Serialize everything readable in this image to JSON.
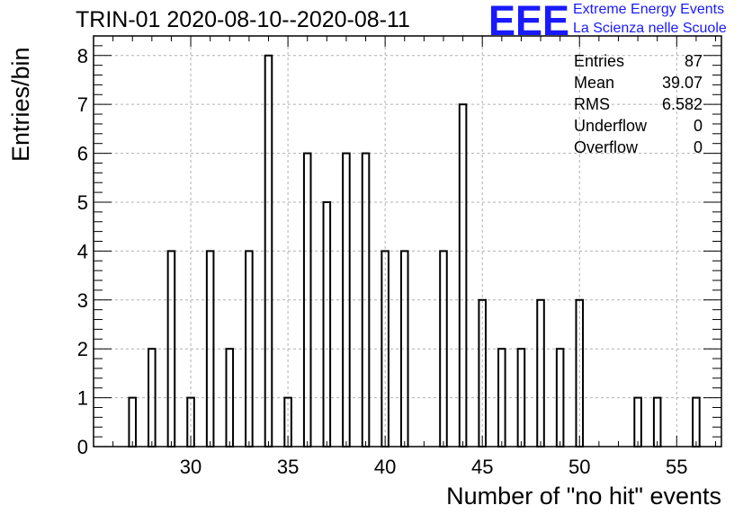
{
  "title": "TRIN-01 2020-08-10--2020-08-11",
  "logo": {
    "letters": "EEE",
    "line1": "Extreme Energy Events",
    "line2": "La Scienza nelle Scuole",
    "color": "#1a1aff"
  },
  "stats": [
    {
      "label": "Entries",
      "value": "87"
    },
    {
      "label": "Mean",
      "value": "39.07"
    },
    {
      "label": "RMS",
      "value": "6.582"
    },
    {
      "label": "Underflow",
      "value": "0"
    },
    {
      "label": "Overflow",
      "value": "0"
    }
  ],
  "chart_data": {
    "type": "bar",
    "xlabel": "Number of \"no hit\" events",
    "ylabel": "Entries/bin",
    "xlim": [
      25,
      57.3
    ],
    "ylim": [
      0,
      8.4
    ],
    "xticks": [
      30,
      35,
      40,
      45,
      50,
      55
    ],
    "yticks": [
      0,
      1,
      2,
      3,
      4,
      5,
      6,
      7,
      8
    ],
    "grid": true,
    "bars": [
      {
        "x": 27,
        "value": 1
      },
      {
        "x": 28,
        "value": 2
      },
      {
        "x": 29,
        "value": 4
      },
      {
        "x": 30,
        "value": 1
      },
      {
        "x": 31,
        "value": 4
      },
      {
        "x": 32,
        "value": 2
      },
      {
        "x": 33,
        "value": 4
      },
      {
        "x": 34,
        "value": 8
      },
      {
        "x": 35,
        "value": 1
      },
      {
        "x": 36,
        "value": 6
      },
      {
        "x": 37,
        "value": 5
      },
      {
        "x": 38,
        "value": 6
      },
      {
        "x": 39,
        "value": 6
      },
      {
        "x": 40,
        "value": 4
      },
      {
        "x": 41,
        "value": 4
      },
      {
        "x": 43,
        "value": 4
      },
      {
        "x": 44,
        "value": 7
      },
      {
        "x": 45,
        "value": 3
      },
      {
        "x": 46,
        "value": 2
      },
      {
        "x": 47,
        "value": 2
      },
      {
        "x": 48,
        "value": 3
      },
      {
        "x": 49,
        "value": 2
      },
      {
        "x": 50,
        "value": 3
      },
      {
        "x": 53,
        "value": 1
      },
      {
        "x": 54,
        "value": 1
      },
      {
        "x": 56,
        "value": 1
      }
    ]
  }
}
